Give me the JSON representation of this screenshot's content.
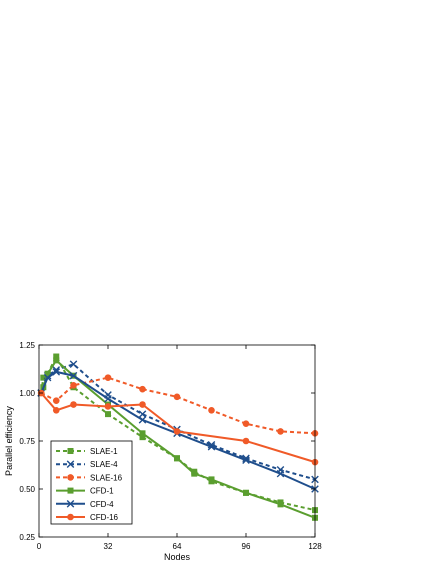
{
  "chart_data": {
    "type": "line",
    "xlabel": "Nodes",
    "ylabel": "Parallel efficiency",
    "xlim": [
      0,
      128
    ],
    "ylim": [
      0.25,
      1.25
    ],
    "xticks": [
      0,
      32,
      64,
      96,
      128
    ],
    "xtick_labels": [
      "0",
      "32",
      "64",
      "96",
      "128"
    ],
    "yticks": [
      0.25,
      0.5,
      0.75,
      1.0,
      1.25
    ],
    "ytick_labels": [
      "0.25",
      "0.50",
      "0.75",
      "1.00",
      "1.25"
    ],
    "grid": false,
    "legend_position": "bottom-left",
    "series": [
      {
        "name": "SLAE-1",
        "color": "#5a9e2f",
        "dash": true,
        "marker": "square",
        "x": [
          1,
          2,
          4,
          8,
          16,
          32,
          48,
          64,
          72,
          80,
          96,
          112,
          128
        ],
        "y": [
          1.0,
          1.08,
          1.1,
          1.19,
          1.03,
          0.89,
          0.77,
          0.66,
          0.59,
          0.54,
          0.48,
          0.43,
          0.39
        ]
      },
      {
        "name": "SLAE-4",
        "color": "#1f4e8c",
        "dash": true,
        "marker": "x",
        "x": [
          1,
          4,
          8,
          16,
          32,
          48,
          64,
          80,
          96,
          112,
          128
        ],
        "y": [
          1.0,
          1.09,
          1.12,
          1.15,
          0.99,
          0.89,
          0.81,
          0.73,
          0.66,
          0.6,
          0.55
        ]
      },
      {
        "name": "SLAE-16",
        "color": "#f05a28",
        "dash": true,
        "marker": "circle",
        "x": [
          1,
          8,
          16,
          32,
          48,
          64,
          80,
          96,
          112,
          128
        ],
        "y": [
          1.0,
          0.96,
          1.04,
          1.08,
          1.02,
          0.98,
          0.91,
          0.84,
          0.8,
          0.79
        ]
      },
      {
        "name": "CFD-1",
        "color": "#5a9e2f",
        "dash": false,
        "marker": "square",
        "x": [
          1,
          2,
          4,
          8,
          16,
          32,
          48,
          64,
          72,
          80,
          96,
          112,
          128
        ],
        "y": [
          1.0,
          1.03,
          1.1,
          1.17,
          1.09,
          0.94,
          0.79,
          0.66,
          0.58,
          0.55,
          0.48,
          0.42,
          0.35
        ]
      },
      {
        "name": "CFD-4",
        "color": "#1f4e8c",
        "dash": false,
        "marker": "x",
        "x": [
          1,
          4,
          8,
          16,
          32,
          48,
          64,
          80,
          96,
          112,
          128
        ],
        "y": [
          1.0,
          1.08,
          1.11,
          1.09,
          0.97,
          0.86,
          0.79,
          0.72,
          0.65,
          0.58,
          0.5
        ]
      },
      {
        "name": "CFD-16",
        "color": "#f05a28",
        "dash": false,
        "marker": "circle",
        "x": [
          1,
          8,
          16,
          32,
          48,
          64,
          96,
          128
        ],
        "y": [
          1.0,
          0.91,
          0.94,
          0.93,
          0.94,
          0.8,
          0.75,
          0.64
        ]
      }
    ]
  }
}
